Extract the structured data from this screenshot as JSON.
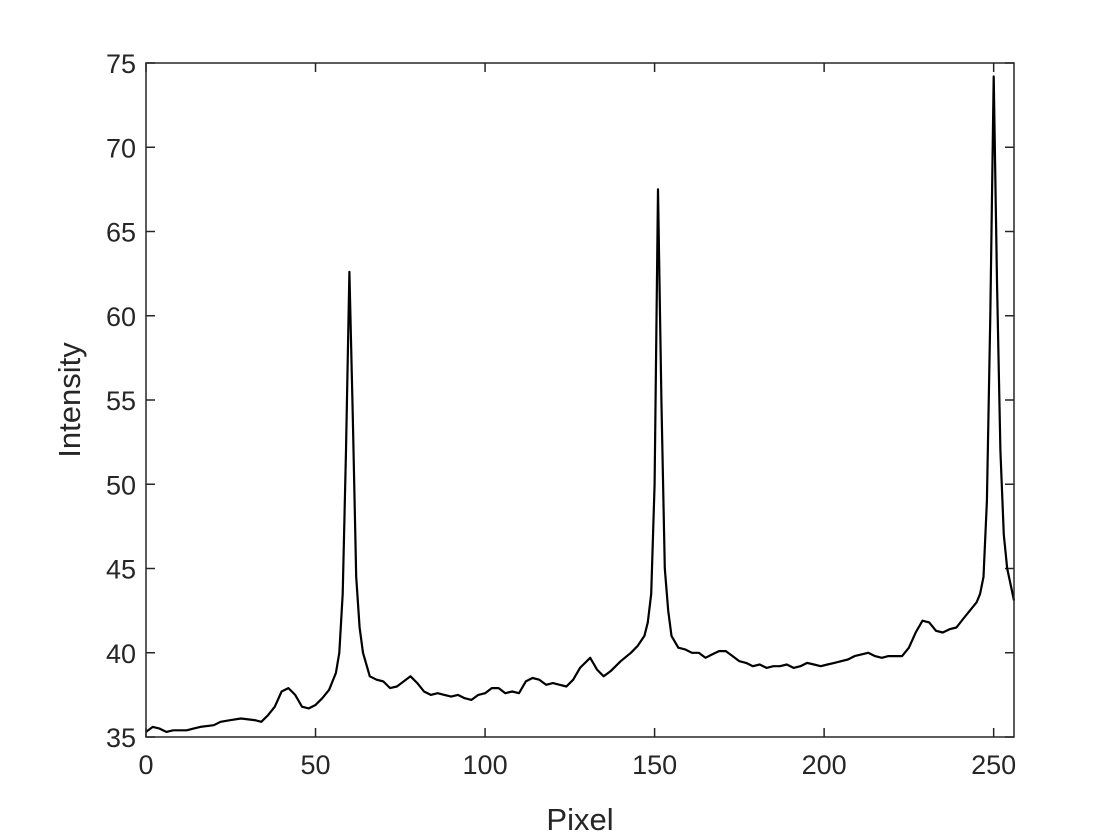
{
  "chart_data": {
    "type": "line",
    "title": "",
    "xlabel": "Pixel",
    "ylabel": "Intensity",
    "xlim": [
      0,
      256
    ],
    "ylim": [
      35,
      75
    ],
    "xticks": [
      0,
      50,
      100,
      150,
      200,
      250
    ],
    "yticks": [
      35,
      40,
      45,
      50,
      55,
      60,
      65,
      70,
      75
    ],
    "grid": false,
    "line_color": "#000000",
    "series": [
      {
        "x": [
          0,
          2,
          4,
          6,
          8,
          10,
          12,
          14,
          16,
          20,
          22,
          25,
          28,
          32,
          34,
          36,
          38,
          40,
          42,
          44,
          46,
          48,
          50,
          52,
          54,
          56,
          57,
          58,
          59,
          60,
          61,
          62,
          63,
          64,
          66,
          68,
          70,
          72,
          74,
          76,
          78,
          80,
          82,
          84,
          86,
          88,
          90,
          92,
          94,
          96,
          98,
          100,
          102,
          104,
          106,
          108,
          110,
          112,
          114,
          116,
          118,
          120,
          122,
          124,
          126,
          128,
          131,
          133,
          135,
          137,
          140,
          143,
          145,
          147,
          148,
          149,
          150,
          151,
          152,
          153,
          154,
          155,
          157,
          159,
          161,
          163,
          165,
          167,
          169,
          171,
          173,
          175,
          177,
          179,
          181,
          183,
          185,
          187,
          189,
          191,
          193,
          195,
          197,
          199,
          201,
          203,
          205,
          207,
          209,
          211,
          213,
          215,
          217,
          219,
          221,
          223,
          225,
          227,
          229,
          231,
          233,
          235,
          237,
          239,
          241,
          243,
          245,
          246,
          247,
          248,
          249,
          250,
          251,
          252,
          253,
          254,
          256
        ],
        "y": [
          35.3,
          35.6,
          35.5,
          35.3,
          35.4,
          35.4,
          35.4,
          35.5,
          35.6,
          35.7,
          35.9,
          36.0,
          36.1,
          36.0,
          35.9,
          36.3,
          36.8,
          37.7,
          37.9,
          37.5,
          36.8,
          36.7,
          36.9,
          37.3,
          37.8,
          38.8,
          40.0,
          43.5,
          52.0,
          62.6,
          54.0,
          44.5,
          41.5,
          40.0,
          38.6,
          38.4,
          38.3,
          37.9,
          38.0,
          38.3,
          38.6,
          38.2,
          37.7,
          37.5,
          37.6,
          37.5,
          37.4,
          37.5,
          37.3,
          37.2,
          37.5,
          37.6,
          37.9,
          37.9,
          37.6,
          37.7,
          37.6,
          38.3,
          38.5,
          38.4,
          38.1,
          38.2,
          38.1,
          38.0,
          38.4,
          39.1,
          39.7,
          39.0,
          38.6,
          38.9,
          39.5,
          40.0,
          40.4,
          41.0,
          41.8,
          43.5,
          50.0,
          67.5,
          55.0,
          45.0,
          42.5,
          41.0,
          40.3,
          40.2,
          40.0,
          40.0,
          39.7,
          39.9,
          40.1,
          40.1,
          39.8,
          39.5,
          39.4,
          39.2,
          39.3,
          39.1,
          39.2,
          39.2,
          39.3,
          39.1,
          39.2,
          39.4,
          39.3,
          39.2,
          39.3,
          39.4,
          39.5,
          39.6,
          39.8,
          39.9,
          40.0,
          39.8,
          39.7,
          39.8,
          39.8,
          39.8,
          40.3,
          41.2,
          41.9,
          41.8,
          41.3,
          41.2,
          41.4,
          41.5,
          42.0,
          42.5,
          43.0,
          43.5,
          44.5,
          49.0,
          60.0,
          74.2,
          62.0,
          52.0,
          47.0,
          45.0,
          43.1
        ]
      }
    ]
  }
}
